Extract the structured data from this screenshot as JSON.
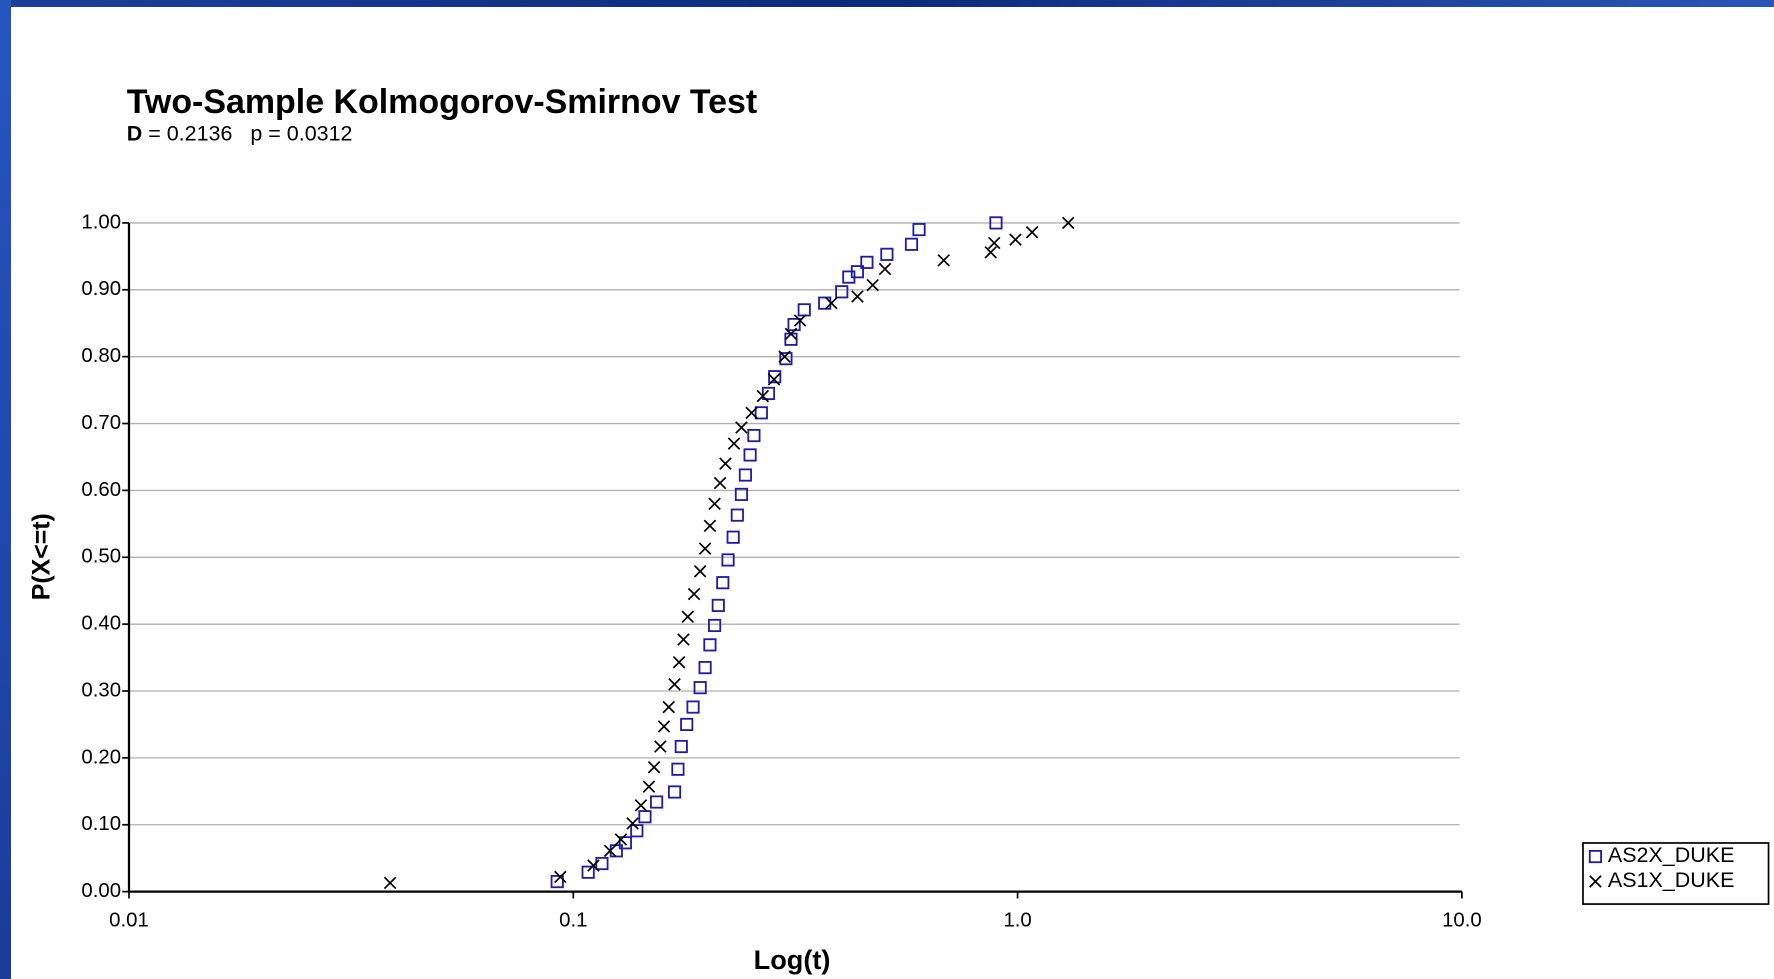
{
  "chart_data": {
    "type": "scatter",
    "title": "Two-Sample Kolmogorov-Smirnov Test",
    "subtitle_parts": [
      "D",
      " = 0.2136   p = 0.0312"
    ],
    "x_label": "Log(t)",
    "y_label": "P(X<=t)",
    "x_log": true,
    "grid": true,
    "legend": "bottom-right",
    "xlim": [
      0.01,
      10.0
    ],
    "xticks": [
      0.01,
      0.1,
      {
        "value": 1.0,
        "label": "1.0"
      },
      {
        "value": 10.0,
        "label": "10.0"
      }
    ],
    "ylim": [
      0,
      1
    ],
    "yticks": [
      {
        "value": 0,
        "label": "0.00"
      },
      {
        "value": 0.1,
        "label": "0.10"
      },
      {
        "value": 0.2,
        "label": "0.20"
      },
      {
        "value": 0.3,
        "label": "0.30"
      },
      {
        "value": 0.4,
        "label": "0.40"
      },
      {
        "value": 0.5,
        "label": "0.50"
      },
      {
        "value": 0.6,
        "label": "0.60"
      },
      {
        "value": 0.7,
        "label": "0.70"
      },
      {
        "value": 0.8,
        "label": "0.80"
      },
      {
        "value": 0.9,
        "label": "0.90"
      },
      {
        "value": 1.0,
        "label": "1.00"
      }
    ],
    "series": [
      {
        "name": "AS2X_DUKE",
        "color": "#1c1ca8",
        "marker": "square",
        "x": [
          0.092,
          0.108,
          0.116,
          0.125,
          0.131,
          0.139,
          0.145,
          0.154,
          0.169,
          0.172,
          0.175,
          0.18,
          0.186,
          0.193,
          0.198,
          0.203,
          0.208,
          0.212,
          0.217,
          0.223,
          0.229,
          0.234,
          0.239,
          0.244,
          0.25,
          0.255,
          0.265,
          0.275,
          0.284,
          0.301,
          0.309,
          0.314,
          0.331,
          0.368,
          0.402,
          0.417,
          0.436,
          0.458,
          0.508,
          0.577,
          0.6,
          0.894
        ],
        "values": [
          0.015,
          0.029,
          0.042,
          0.061,
          0.073,
          0.091,
          0.112,
          0.134,
          0.149,
          0.183,
          0.217,
          0.25,
          0.276,
          0.305,
          0.335,
          0.369,
          0.398,
          0.428,
          0.462,
          0.496,
          0.53,
          0.563,
          0.594,
          0.623,
          0.653,
          0.682,
          0.716,
          0.745,
          0.77,
          0.797,
          0.826,
          0.848,
          0.87,
          0.88,
          0.897,
          0.919,
          0.927,
          0.941,
          0.953,
          0.968,
          0.99,
          1.0
        ]
      },
      {
        "name": "AS1X_DUKE",
        "color": "#000000",
        "marker": "x",
        "x": [
          0.0387,
          0.0935,
          0.111,
          0.121,
          0.128,
          0.136,
          0.142,
          0.148,
          0.152,
          0.157,
          0.16,
          0.164,
          0.169,
          0.173,
          0.177,
          0.181,
          0.187,
          0.193,
          0.198,
          0.203,
          0.208,
          0.214,
          0.22,
          0.23,
          0.239,
          0.252,
          0.267,
          0.283,
          0.299,
          0.309,
          0.324,
          0.381,
          0.436,
          0.472,
          0.503,
          0.682,
          0.87,
          0.886,
          0.989,
          1.078,
          1.3
        ],
        "values": [
          0.013,
          0.022,
          0.039,
          0.061,
          0.078,
          0.102,
          0.129,
          0.157,
          0.186,
          0.217,
          0.247,
          0.276,
          0.31,
          0.343,
          0.377,
          0.411,
          0.445,
          0.479,
          0.513,
          0.547,
          0.58,
          0.611,
          0.64,
          0.67,
          0.694,
          0.716,
          0.741,
          0.766,
          0.8,
          0.834,
          0.854,
          0.88,
          0.89,
          0.907,
          0.931,
          0.944,
          0.956,
          0.97,
          0.975,
          0.986,
          1.0
        ]
      }
    ]
  }
}
